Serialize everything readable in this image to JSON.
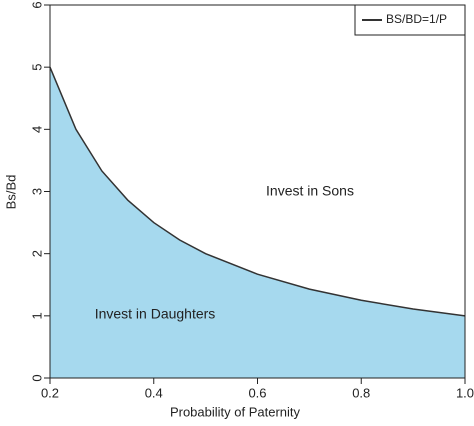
{
  "chart_data": {
    "type": "area",
    "x_label": "Probability of Paternity",
    "y_label": "Bs/Bd",
    "x": [
      0.2,
      0.25,
      0.3,
      0.35,
      0.4,
      0.45,
      0.5,
      0.6,
      0.7,
      0.8,
      0.9,
      1.0
    ],
    "series": [
      {
        "name": "BS/BD=1/P",
        "color": "#333333",
        "fill": "#a6d9ee",
        "values": [
          5,
          4,
          3.33,
          2.86,
          2.5,
          2.22,
          2,
          1.67,
          1.43,
          1.25,
          1.11,
          1
        ]
      }
    ],
    "annotations": [
      "Invest in Sons",
      "Invest in Daughters"
    ],
    "xlim": [
      0.2,
      1.0
    ],
    "xticks": [
      0.2,
      0.4,
      0.6,
      0.8,
      {
        "value": 1.0,
        "label": "1.0"
      }
    ],
    "ylim": [
      0,
      6
    ],
    "yticks": [
      0,
      1,
      2,
      3,
      4,
      5,
      6
    ],
    "legend": "top-right",
    "grid": false
  }
}
